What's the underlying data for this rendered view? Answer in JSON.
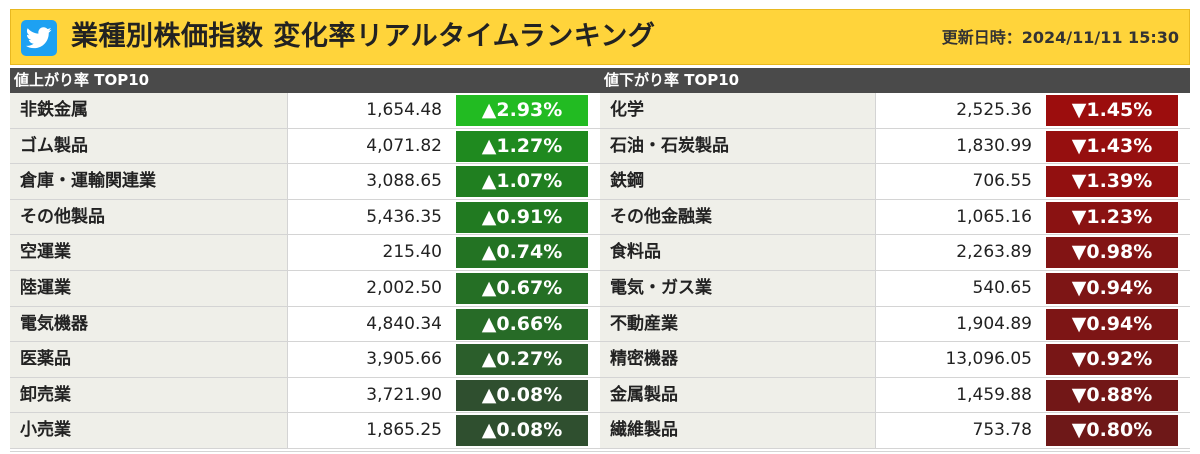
{
  "header": {
    "icon": "twitter-bird-icon",
    "title": "業種別株価指数 変化率リアルタイムランキング",
    "updated_label": "更新日時：2024/11/11 15:30"
  },
  "colors": {
    "header_bg": "#ffd43b",
    "panel_title_bg": "#4a4a4a",
    "up_top": "#22bb22",
    "up_shades": [
      "#22bb22",
      "#1f8a1f",
      "#207f20",
      "#217a21",
      "#237323",
      "#256f25",
      "#276b27",
      "#2b5e2b",
      "#2f4f2f",
      "#2f4f2f"
    ],
    "down_shades": [
      "#9c0d0d",
      "#960f0f",
      "#921010",
      "#8a1212",
      "#821414",
      "#7d1515",
      "#7d1515",
      "#781616",
      "#721717",
      "#6e1818"
    ]
  },
  "gainers": {
    "title": "値上がり率 TOP10",
    "rows": [
      {
        "name": "非鉄金属",
        "value": "1,654.48",
        "change": "▲2.93%"
      },
      {
        "name": "ゴム製品",
        "value": "4,071.82",
        "change": "▲1.27%"
      },
      {
        "name": "倉庫・運輸関連業",
        "value": "3,088.65",
        "change": "▲1.07%"
      },
      {
        "name": "その他製品",
        "value": "5,436.35",
        "change": "▲0.91%"
      },
      {
        "name": "空運業",
        "value": "215.40",
        "change": "▲0.74%"
      },
      {
        "name": "陸運業",
        "value": "2,002.50",
        "change": "▲0.67%"
      },
      {
        "name": "電気機器",
        "value": "4,840.34",
        "change": "▲0.66%"
      },
      {
        "name": "医薬品",
        "value": "3,905.66",
        "change": "▲0.27%"
      },
      {
        "name": "卸売業",
        "value": "3,721.90",
        "change": "▲0.08%"
      },
      {
        "name": "小売業",
        "value": "1,865.25",
        "change": "▲0.08%"
      }
    ]
  },
  "losers": {
    "title": "値下がり率 TOP10",
    "rows": [
      {
        "name": "化学",
        "value": "2,525.36",
        "change": "▼1.45%"
      },
      {
        "name": "石油・石炭製品",
        "value": "1,830.99",
        "change": "▼1.43%"
      },
      {
        "name": "鉄鋼",
        "value": "706.55",
        "change": "▼1.39%"
      },
      {
        "name": "その他金融業",
        "value": "1,065.16",
        "change": "▼1.23%"
      },
      {
        "name": "食料品",
        "value": "2,263.89",
        "change": "▼0.98%"
      },
      {
        "name": "電気・ガス業",
        "value": "540.65",
        "change": "▼0.94%"
      },
      {
        "name": "不動産業",
        "value": "1,904.89",
        "change": "▼0.94%"
      },
      {
        "name": "精密機器",
        "value": "13,096.05",
        "change": "▼0.92%"
      },
      {
        "name": "金属製品",
        "value": "1,459.88",
        "change": "▼0.88%"
      },
      {
        "name": "繊維製品",
        "value": "753.78",
        "change": "▼0.80%"
      }
    ]
  }
}
